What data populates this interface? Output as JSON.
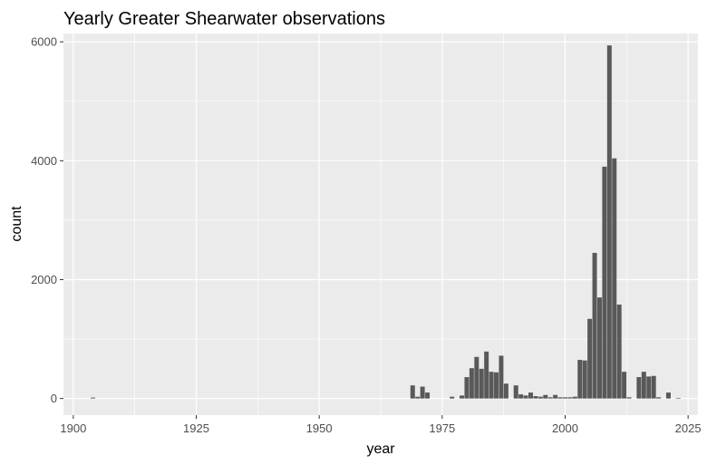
{
  "chart_data": {
    "type": "bar",
    "title": "Yearly Greater Shearwater observations",
    "xlabel": "year",
    "ylabel": "count",
    "xlim": [
      1898,
      2027
    ],
    "ylim": [
      -280,
      6140
    ],
    "x_ticks": [
      1900,
      1925,
      1950,
      1975,
      2000,
      2025
    ],
    "y_ticks": [
      0,
      2000,
      4000,
      6000
    ],
    "grid": true,
    "legend": "none",
    "panel_color": "#ebebeb",
    "bar_color": "#595959",
    "grid_color": "#ffffff",
    "x": [
      1904,
      1969,
      1970,
      1971,
      1972,
      1977,
      1979,
      1980,
      1981,
      1982,
      1983,
      1984,
      1985,
      1986,
      1987,
      1988,
      1990,
      1991,
      1992,
      1993,
      1994,
      1995,
      1996,
      1997,
      1998,
      1999,
      2000,
      2001,
      2002,
      2003,
      2004,
      2005,
      2006,
      2007,
      2008,
      2009,
      2010,
      2011,
      2012,
      2013,
      2015,
      2016,
      2017,
      2018,
      2019,
      2021,
      2023
    ],
    "values": [
      15,
      220,
      30,
      200,
      100,
      30,
      50,
      360,
      510,
      700,
      500,
      790,
      450,
      440,
      720,
      250,
      220,
      70,
      50,
      100,
      40,
      30,
      60,
      20,
      60,
      20,
      20,
      20,
      30,
      650,
      640,
      1340,
      2450,
      1700,
      3900,
      5940,
      4040,
      1580,
      450,
      20,
      360,
      450,
      370,
      380,
      20,
      100,
      10
    ]
  }
}
